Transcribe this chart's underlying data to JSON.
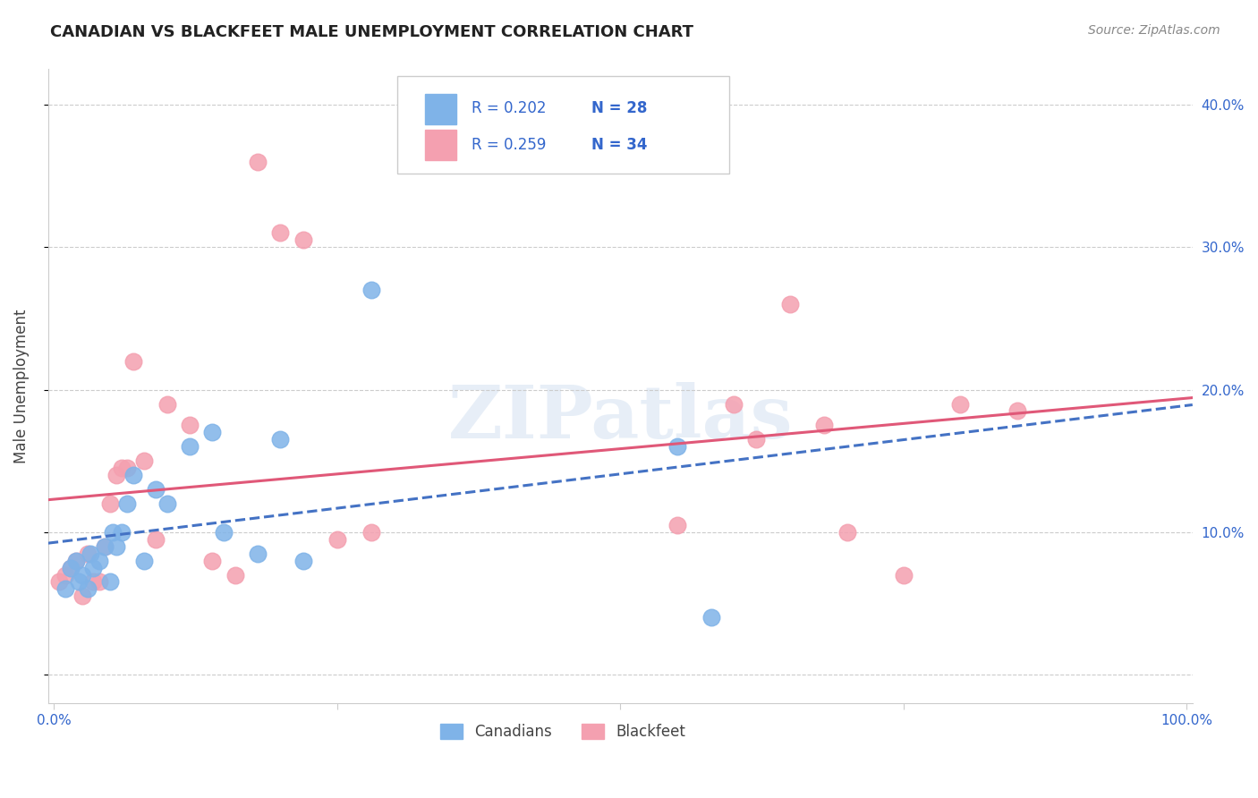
{
  "title": "CANADIAN VS BLACKFEET MALE UNEMPLOYMENT CORRELATION CHART",
  "source": "Source: ZipAtlas.com",
  "ylabel": "Male Unemployment",
  "xlim": [
    -0.005,
    1.005
  ],
  "ylim": [
    -0.02,
    0.425
  ],
  "canadians_x": [
    0.01,
    0.015,
    0.02,
    0.022,
    0.025,
    0.03,
    0.032,
    0.035,
    0.04,
    0.045,
    0.05,
    0.052,
    0.055,
    0.06,
    0.065,
    0.07,
    0.08,
    0.09,
    0.1,
    0.12,
    0.14,
    0.15,
    0.18,
    0.2,
    0.22,
    0.28,
    0.55,
    0.58
  ],
  "canadians_y": [
    0.06,
    0.075,
    0.08,
    0.065,
    0.07,
    0.06,
    0.085,
    0.075,
    0.08,
    0.09,
    0.065,
    0.1,
    0.09,
    0.1,
    0.12,
    0.14,
    0.08,
    0.13,
    0.12,
    0.16,
    0.17,
    0.1,
    0.085,
    0.165,
    0.08,
    0.27,
    0.16,
    0.04
  ],
  "blackfeet_x": [
    0.005,
    0.01,
    0.015,
    0.02,
    0.025,
    0.03,
    0.035,
    0.04,
    0.045,
    0.05,
    0.055,
    0.06,
    0.065,
    0.07,
    0.08,
    0.09,
    0.1,
    0.12,
    0.14,
    0.16,
    0.18,
    0.2,
    0.22,
    0.25,
    0.28,
    0.55,
    0.6,
    0.62,
    0.65,
    0.68,
    0.7,
    0.75,
    0.8,
    0.85
  ],
  "blackfeet_y": [
    0.065,
    0.07,
    0.075,
    0.08,
    0.055,
    0.085,
    0.065,
    0.065,
    0.09,
    0.12,
    0.14,
    0.145,
    0.145,
    0.22,
    0.15,
    0.095,
    0.19,
    0.175,
    0.08,
    0.07,
    0.36,
    0.31,
    0.305,
    0.095,
    0.1,
    0.105,
    0.19,
    0.165,
    0.26,
    0.175,
    0.1,
    0.07,
    0.19,
    0.185
  ],
  "canadian_color": "#7fb3e8",
  "blackfeet_color": "#f4a0b0",
  "canadian_line_color": "#4472c4",
  "blackfeet_line_color": "#e05878",
  "legend_R_canadian": "R = 0.202",
  "legend_N_canadian": "N = 28",
  "legend_R_blackfeet": "R = 0.259",
  "legend_N_blackfeet": "N = 34",
  "watermark": "ZIPatlas",
  "background_color": "#ffffff",
  "grid_color": "#cccccc"
}
